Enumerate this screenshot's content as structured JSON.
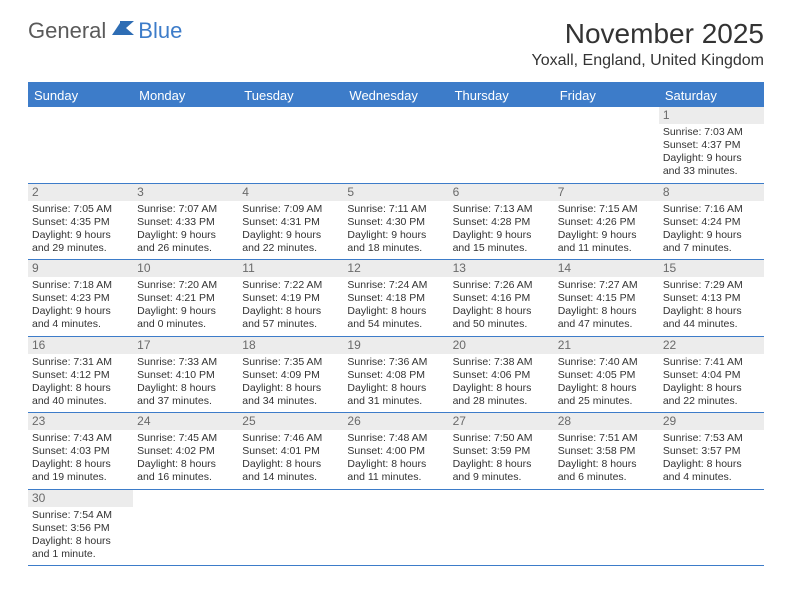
{
  "logo": {
    "part1": "General",
    "part2": "Blue"
  },
  "title": "November 2025",
  "location": "Yoxall, England, United Kingdom",
  "colors": {
    "accent": "#3d7cc9",
    "daynum_bg": "#ececec",
    "text": "#333333",
    "logo_gray": "#5a5a5a"
  },
  "day_names": [
    "Sunday",
    "Monday",
    "Tuesday",
    "Wednesday",
    "Thursday",
    "Friday",
    "Saturday"
  ],
  "weeks": [
    [
      null,
      null,
      null,
      null,
      null,
      null,
      {
        "n": "1",
        "sr": "Sunrise: 7:03 AM",
        "ss": "Sunset: 4:37 PM",
        "dl": "Daylight: 9 hours and 33 minutes."
      }
    ],
    [
      {
        "n": "2",
        "sr": "Sunrise: 7:05 AM",
        "ss": "Sunset: 4:35 PM",
        "dl": "Daylight: 9 hours and 29 minutes."
      },
      {
        "n": "3",
        "sr": "Sunrise: 7:07 AM",
        "ss": "Sunset: 4:33 PM",
        "dl": "Daylight: 9 hours and 26 minutes."
      },
      {
        "n": "4",
        "sr": "Sunrise: 7:09 AM",
        "ss": "Sunset: 4:31 PM",
        "dl": "Daylight: 9 hours and 22 minutes."
      },
      {
        "n": "5",
        "sr": "Sunrise: 7:11 AM",
        "ss": "Sunset: 4:30 PM",
        "dl": "Daylight: 9 hours and 18 minutes."
      },
      {
        "n": "6",
        "sr": "Sunrise: 7:13 AM",
        "ss": "Sunset: 4:28 PM",
        "dl": "Daylight: 9 hours and 15 minutes."
      },
      {
        "n": "7",
        "sr": "Sunrise: 7:15 AM",
        "ss": "Sunset: 4:26 PM",
        "dl": "Daylight: 9 hours and 11 minutes."
      },
      {
        "n": "8",
        "sr": "Sunrise: 7:16 AM",
        "ss": "Sunset: 4:24 PM",
        "dl": "Daylight: 9 hours and 7 minutes."
      }
    ],
    [
      {
        "n": "9",
        "sr": "Sunrise: 7:18 AM",
        "ss": "Sunset: 4:23 PM",
        "dl": "Daylight: 9 hours and 4 minutes."
      },
      {
        "n": "10",
        "sr": "Sunrise: 7:20 AM",
        "ss": "Sunset: 4:21 PM",
        "dl": "Daylight: 9 hours and 0 minutes."
      },
      {
        "n": "11",
        "sr": "Sunrise: 7:22 AM",
        "ss": "Sunset: 4:19 PM",
        "dl": "Daylight: 8 hours and 57 minutes."
      },
      {
        "n": "12",
        "sr": "Sunrise: 7:24 AM",
        "ss": "Sunset: 4:18 PM",
        "dl": "Daylight: 8 hours and 54 minutes."
      },
      {
        "n": "13",
        "sr": "Sunrise: 7:26 AM",
        "ss": "Sunset: 4:16 PM",
        "dl": "Daylight: 8 hours and 50 minutes."
      },
      {
        "n": "14",
        "sr": "Sunrise: 7:27 AM",
        "ss": "Sunset: 4:15 PM",
        "dl": "Daylight: 8 hours and 47 minutes."
      },
      {
        "n": "15",
        "sr": "Sunrise: 7:29 AM",
        "ss": "Sunset: 4:13 PM",
        "dl": "Daylight: 8 hours and 44 minutes."
      }
    ],
    [
      {
        "n": "16",
        "sr": "Sunrise: 7:31 AM",
        "ss": "Sunset: 4:12 PM",
        "dl": "Daylight: 8 hours and 40 minutes."
      },
      {
        "n": "17",
        "sr": "Sunrise: 7:33 AM",
        "ss": "Sunset: 4:10 PM",
        "dl": "Daylight: 8 hours and 37 minutes."
      },
      {
        "n": "18",
        "sr": "Sunrise: 7:35 AM",
        "ss": "Sunset: 4:09 PM",
        "dl": "Daylight: 8 hours and 34 minutes."
      },
      {
        "n": "19",
        "sr": "Sunrise: 7:36 AM",
        "ss": "Sunset: 4:08 PM",
        "dl": "Daylight: 8 hours and 31 minutes."
      },
      {
        "n": "20",
        "sr": "Sunrise: 7:38 AM",
        "ss": "Sunset: 4:06 PM",
        "dl": "Daylight: 8 hours and 28 minutes."
      },
      {
        "n": "21",
        "sr": "Sunrise: 7:40 AM",
        "ss": "Sunset: 4:05 PM",
        "dl": "Daylight: 8 hours and 25 minutes."
      },
      {
        "n": "22",
        "sr": "Sunrise: 7:41 AM",
        "ss": "Sunset: 4:04 PM",
        "dl": "Daylight: 8 hours and 22 minutes."
      }
    ],
    [
      {
        "n": "23",
        "sr": "Sunrise: 7:43 AM",
        "ss": "Sunset: 4:03 PM",
        "dl": "Daylight: 8 hours and 19 minutes."
      },
      {
        "n": "24",
        "sr": "Sunrise: 7:45 AM",
        "ss": "Sunset: 4:02 PM",
        "dl": "Daylight: 8 hours and 16 minutes."
      },
      {
        "n": "25",
        "sr": "Sunrise: 7:46 AM",
        "ss": "Sunset: 4:01 PM",
        "dl": "Daylight: 8 hours and 14 minutes."
      },
      {
        "n": "26",
        "sr": "Sunrise: 7:48 AM",
        "ss": "Sunset: 4:00 PM",
        "dl": "Daylight: 8 hours and 11 minutes."
      },
      {
        "n": "27",
        "sr": "Sunrise: 7:50 AM",
        "ss": "Sunset: 3:59 PM",
        "dl": "Daylight: 8 hours and 9 minutes."
      },
      {
        "n": "28",
        "sr": "Sunrise: 7:51 AM",
        "ss": "Sunset: 3:58 PM",
        "dl": "Daylight: 8 hours and 6 minutes."
      },
      {
        "n": "29",
        "sr": "Sunrise: 7:53 AM",
        "ss": "Sunset: 3:57 PM",
        "dl": "Daylight: 8 hours and 4 minutes."
      }
    ],
    [
      {
        "n": "30",
        "sr": "Sunrise: 7:54 AM",
        "ss": "Sunset: 3:56 PM",
        "dl": "Daylight: 8 hours and 1 minute."
      },
      null,
      null,
      null,
      null,
      null,
      null
    ]
  ]
}
